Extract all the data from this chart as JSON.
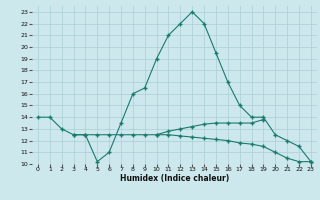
{
  "xlabel": "Humidex (Indice chaleur)",
  "x": [
    0,
    1,
    2,
    3,
    4,
    5,
    6,
    7,
    8,
    9,
    10,
    11,
    12,
    13,
    14,
    15,
    16,
    17,
    18,
    19,
    20,
    21,
    22,
    23
  ],
  "curve_main": [
    14,
    14,
    13,
    12.5,
    12.5,
    10.2,
    11,
    13.5,
    16,
    16.5,
    19,
    21,
    22,
    23,
    22,
    19.5,
    17,
    15,
    14,
    14,
    12.5,
    12,
    11.5,
    10.2
  ],
  "curve_flat1": [
    null,
    null,
    null,
    12.5,
    12.5,
    12.5,
    12.5,
    12.5,
    12.5,
    12.5,
    12.5,
    12.8,
    13.0,
    13.2,
    13.4,
    13.5,
    13.5,
    13.5,
    13.5,
    13.8,
    null,
    null,
    null,
    null
  ],
  "curve_flat2": [
    null,
    null,
    null,
    null,
    null,
    null,
    null,
    null,
    null,
    null,
    12.5,
    12.5,
    12.4,
    12.3,
    12.2,
    12.1,
    12.0,
    11.8,
    11.7,
    11.5,
    11.0,
    10.5,
    10.2,
    10.2
  ],
  "ylim": [
    10,
    23.5
  ],
  "xlim": [
    -0.5,
    23.5
  ],
  "color": "#1a7a6e",
  "bg_color": "#cce8ec",
  "grid_color": "#aacdd4"
}
